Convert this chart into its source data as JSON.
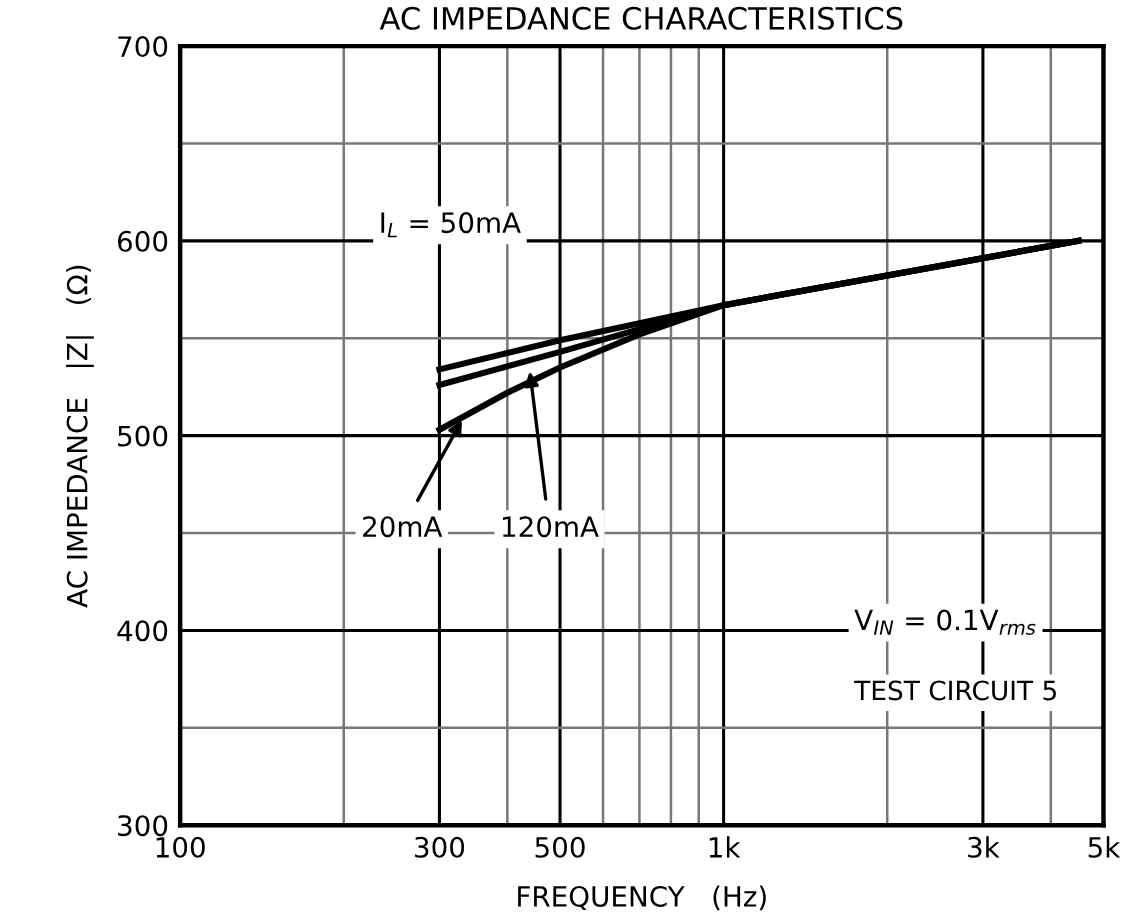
{
  "chart_data": {
    "type": "line",
    "title": "AC IMPEDANCE CHARACTERISTICS",
    "xlabel": "FREQUENCY   (Hz)",
    "ylabel": "AC IMPEDANCE   |Z|   (Ω)",
    "log": "x",
    "series": [
      {
        "color": "#000000",
        "x": [
          300,
          500,
          1000,
          4500
        ],
        "values": [
          534,
          549,
          567,
          600
        ]
      },
      {
        "color": "#000000",
        "x": [
          300,
          500,
          1000,
          4500
        ],
        "values": [
          526,
          543,
          567,
          600
        ]
      },
      {
        "color": "#000000",
        "x": [
          300,
          400,
          500,
          700,
          1000,
          4500
        ],
        "values": [
          503,
          522,
          535,
          552,
          567,
          600
        ]
      }
    ],
    "xlim": [
      100,
      5000
    ],
    "ylim": [
      300,
      700
    ],
    "xticks": [
      100,
      {
        "value": 200,
        "label": null
      },
      300,
      {
        "value": 400,
        "label": null
      },
      500,
      {
        "value": 600,
        "label": null
      },
      {
        "value": 700,
        "label": null
      },
      {
        "value": 800,
        "label": null
      },
      {
        "value": 900,
        "label": null
      },
      {
        "value": 1000,
        "label": "1k"
      },
      {
        "value": 2000,
        "label": null
      },
      {
        "value": 3000,
        "label": "3k"
      },
      {
        "value": 4000,
        "label": null
      },
      {
        "value": 5000,
        "label": "5k"
      }
    ],
    "yticks": [
      300,
      {
        "value": 350,
        "label": null
      },
      400,
      {
        "value": 450,
        "label": null
      },
      500,
      {
        "value": 550,
        "label": null
      },
      600,
      {
        "value": 650,
        "label": null
      },
      700
    ],
    "grid": true,
    "line_style": "solid",
    "marker": "none",
    "legend": false,
    "annotations": [
      {
        "text": "20mA",
        "x": 330,
        "y": 508
      },
      {
        "text": "120mA",
        "x": 440,
        "y": 533
      },
      "I$_{L}$ = 50mA",
      "V$_{IN}$ = 0.1V$_{rms}$",
      "TEST CIRCUIT 5"
    ]
  }
}
